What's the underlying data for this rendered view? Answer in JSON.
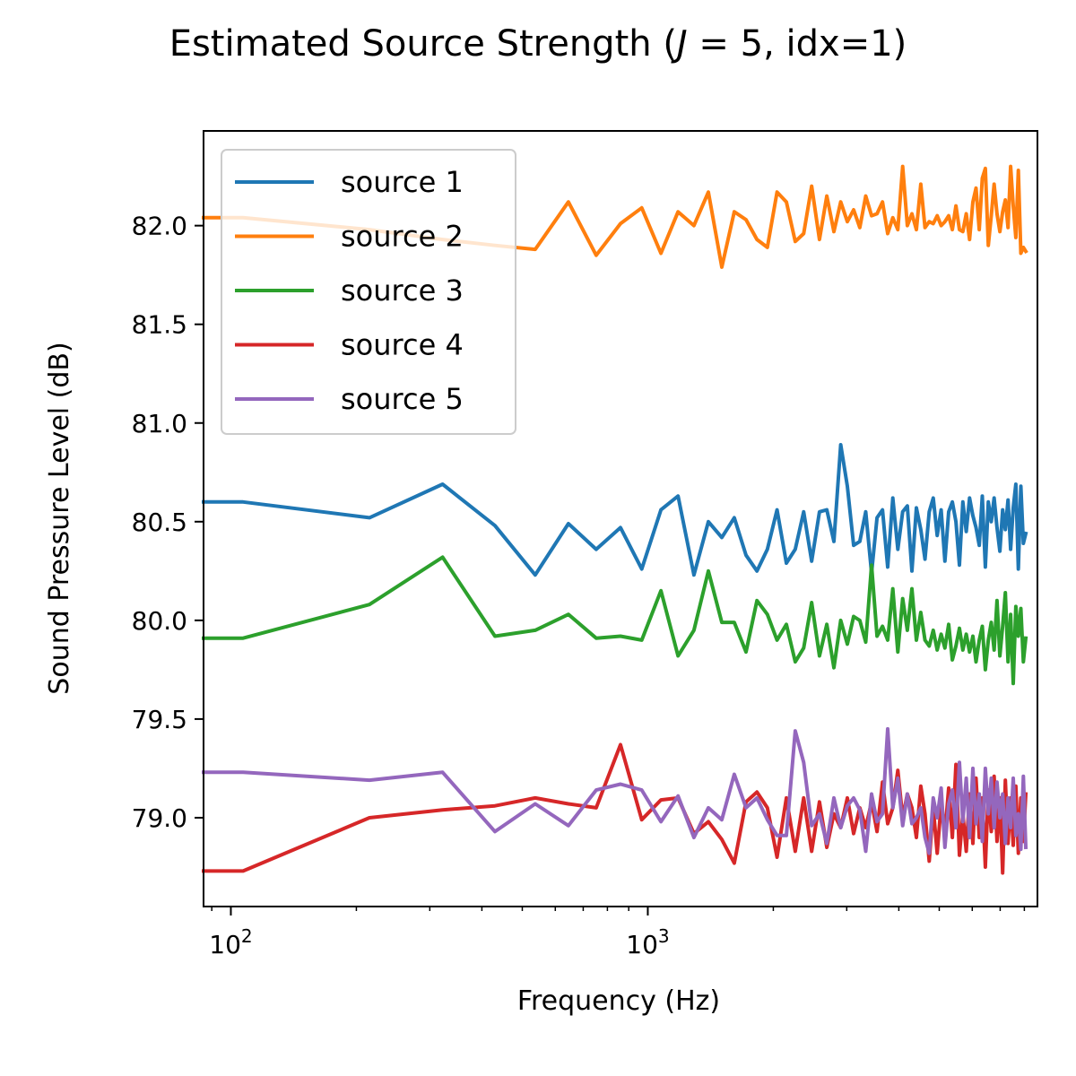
{
  "chart_data": {
    "type": "line",
    "title": "Estimated Source Strength ($J = 5$, idx=1)",
    "title_parts": {
      "pre": "Estimated Source Strength (",
      "var": "J",
      "mid": " = 5, idx=1)"
    },
    "xlabel": "Frequency (Hz)",
    "ylabel": "Sound Pressure Level (dB)",
    "xscale": "log",
    "xlim": [
      86,
      8600
    ],
    "ylim": [
      78.55,
      82.48
    ],
    "grid": false,
    "legend_position": "top-left",
    "x_ticks": [
      {
        "value": 100,
        "base": "10",
        "exp": "2"
      },
      {
        "value": 1000,
        "base": "10",
        "exp": "3"
      }
    ],
    "y_ticks": [
      {
        "value": 79.0,
        "label": "79.0"
      },
      {
        "value": 79.5,
        "label": "79.5"
      },
      {
        "value": 80.0,
        "label": "80.0"
      },
      {
        "value": 80.5,
        "label": "80.5"
      },
      {
        "value": 81.0,
        "label": "81.0"
      },
      {
        "value": 81.5,
        "label": "81.5"
      },
      {
        "value": 82.0,
        "label": "82.0"
      }
    ],
    "x": [
      86,
      107,
      215,
      322,
      430,
      537,
      645,
      752,
      860,
      967,
      1075,
      1182,
      1290,
      1397,
      1505,
      1612,
      1720,
      1827,
      1935,
      2042,
      2150,
      2257,
      2365,
      2472,
      2580,
      2687,
      2795,
      2902,
      3010,
      3117,
      3225,
      3332,
      3440,
      3547,
      3655,
      3762,
      3870,
      3977,
      4085,
      4192,
      4300,
      4407,
      4515,
      4622,
      4730,
      4837,
      4945,
      5052,
      5160,
      5267,
      5375,
      5482,
      5590,
      5697,
      5805,
      5912,
      6020,
      6127,
      6235,
      6342,
      6450,
      6557,
      6665,
      6772,
      6880,
      6987,
      7095,
      7202,
      7310,
      7417,
      7525,
      7632,
      7740,
      7847,
      7955,
      8062
    ],
    "series": [
      {
        "name": "source 1",
        "color": "#1f77b4",
        "values": [
          80.6,
          80.6,
          80.52,
          80.69,
          80.48,
          80.23,
          80.49,
          80.36,
          80.47,
          80.26,
          80.56,
          80.63,
          80.23,
          80.5,
          80.42,
          80.52,
          80.33,
          80.25,
          80.36,
          80.56,
          80.29,
          80.36,
          80.55,
          80.3,
          80.55,
          80.56,
          80.4,
          80.89,
          80.68,
          80.38,
          80.4,
          80.55,
          80.24,
          80.52,
          80.56,
          80.27,
          80.62,
          80.36,
          80.55,
          80.58,
          80.25,
          80.57,
          80.46,
          80.31,
          80.55,
          80.62,
          80.43,
          80.56,
          80.3,
          80.55,
          80.6,
          80.5,
          80.28,
          80.6,
          80.45,
          80.62,
          80.53,
          80.47,
          80.38,
          80.63,
          80.27,
          80.6,
          80.5,
          80.62,
          80.47,
          80.35,
          80.56,
          80.46,
          80.61,
          80.36,
          80.57,
          80.69,
          80.26,
          80.68,
          80.39,
          80.44
        ]
      },
      {
        "name": "source 2",
        "color": "#ff7f0e",
        "values": [
          82.04,
          82.04,
          81.98,
          81.93,
          81.9,
          81.88,
          82.12,
          81.85,
          82.01,
          82.09,
          81.86,
          82.07,
          82.0,
          82.17,
          81.79,
          82.07,
          82.03,
          81.93,
          81.89,
          82.17,
          82.12,
          81.92,
          81.96,
          82.2,
          81.93,
          82.15,
          81.97,
          82.12,
          82.02,
          82.08,
          81.99,
          82.15,
          82.05,
          82.06,
          82.12,
          81.96,
          82.04,
          81.98,
          82.3,
          82.0,
          82.06,
          81.98,
          82.21,
          81.99,
          82.02,
          82.01,
          82.05,
          82.0,
          82.02,
          82.05,
          81.98,
          82.1,
          81.98,
          81.97,
          82.06,
          81.93,
          82.12,
          82.19,
          81.98,
          82.24,
          82.29,
          81.9,
          82.05,
          82.21,
          82.06,
          81.97,
          82.07,
          82.13,
          81.99,
          82.3,
          82.1,
          81.94,
          82.28,
          81.86,
          81.89,
          81.87
        ]
      },
      {
        "name": "source 3",
        "color": "#2ca02c",
        "values": [
          79.91,
          79.91,
          80.08,
          80.32,
          79.92,
          79.95,
          80.03,
          79.91,
          79.92,
          79.9,
          80.15,
          79.82,
          79.95,
          80.25,
          79.99,
          79.99,
          79.84,
          80.1,
          80.03,
          79.9,
          79.98,
          79.79,
          79.86,
          80.09,
          79.82,
          79.98,
          79.76,
          80.0,
          79.88,
          80.02,
          80.0,
          79.89,
          80.28,
          79.92,
          79.97,
          79.9,
          80.16,
          79.84,
          80.11,
          79.95,
          80.16,
          79.9,
          80.04,
          79.9,
          79.87,
          79.95,
          79.85,
          79.93,
          79.86,
          79.98,
          79.8,
          79.87,
          79.96,
          79.85,
          79.93,
          79.84,
          79.92,
          79.79,
          79.9,
          79.97,
          79.75,
          79.9,
          79.99,
          79.85,
          80.1,
          79.82,
          79.97,
          80.14,
          79.79,
          80.03,
          79.68,
          80.07,
          79.92,
          80.06,
          79.79,
          79.91
        ]
      },
      {
        "name": "source 4",
        "color": "#d62728",
        "values": [
          78.73,
          78.73,
          79.0,
          79.04,
          79.06,
          79.1,
          79.07,
          79.05,
          79.37,
          78.99,
          79.09,
          79.1,
          78.92,
          78.98,
          78.89,
          78.77,
          79.08,
          79.13,
          79.05,
          78.8,
          79.1,
          78.83,
          79.1,
          78.83,
          79.08,
          78.85,
          79.02,
          78.95,
          79.1,
          78.92,
          79.05,
          78.95,
          79.08,
          78.93,
          79.18,
          78.97,
          79.05,
          79.24,
          79.0,
          79.12,
          79.05,
          78.9,
          79.16,
          79.02,
          78.78,
          79.05,
          78.82,
          79.07,
          78.92,
          79.15,
          78.9,
          79.27,
          78.81,
          79.02,
          78.83,
          79.12,
          78.87,
          79.2,
          78.9,
          79.1,
          78.75,
          79.14,
          78.93,
          79.21,
          78.88,
          79.1,
          78.72,
          79.19,
          78.87,
          79.1,
          78.86,
          79.16,
          78.82,
          79.1,
          78.88,
          79.12
        ]
      },
      {
        "name": "source 5",
        "color": "#9467bd",
        "values": [
          79.23,
          79.23,
          79.19,
          79.23,
          78.93,
          79.07,
          78.96,
          79.14,
          79.17,
          79.14,
          78.98,
          79.11,
          78.9,
          79.05,
          78.99,
          79.22,
          79.05,
          79.1,
          78.99,
          78.91,
          78.91,
          79.44,
          79.28,
          78.96,
          79.02,
          78.87,
          79.1,
          78.95,
          79.06,
          79.1,
          79.04,
          78.83,
          79.12,
          78.98,
          79.02,
          79.45,
          79.05,
          79.2,
          78.96,
          79.12,
          78.97,
          79.0,
          79.05,
          78.9,
          78.82,
          79.1,
          79.0,
          79.15,
          78.85,
          79.07,
          79.14,
          78.95,
          79.28,
          78.98,
          79.2,
          78.9,
          79.25,
          78.97,
          79.12,
          78.88,
          79.25,
          79.02,
          79.2,
          78.95,
          79.18,
          79.0,
          79.12,
          78.87,
          79.1,
          78.95,
          79.2,
          78.91,
          79.02,
          78.84,
          79.21,
          78.85
        ]
      }
    ]
  }
}
